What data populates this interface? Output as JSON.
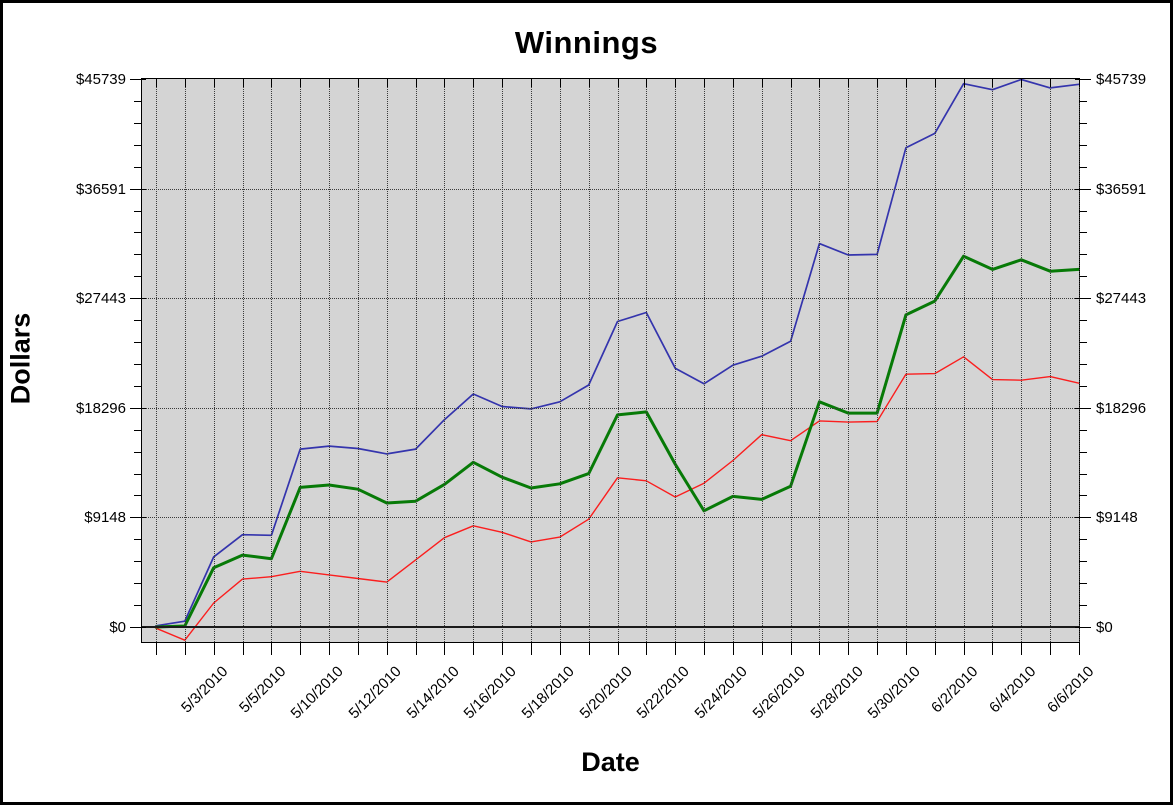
{
  "window": {
    "background": "#ffffff",
    "frame_border": "#000000"
  },
  "chart_data": {
    "type": "line",
    "title": "Winnings",
    "xlabel": "Date",
    "ylabel": "Dollars",
    "ylim": [
      0,
      45739
    ],
    "ymax_label_value": 45739,
    "y_major_ticks": [
      0,
      9148,
      18296,
      27443,
      36591,
      45739
    ],
    "y_tick_labels_top_to_bottom": [
      "$45739",
      "$36591",
      "$27443",
      "$18296",
      "$9148",
      "$0"
    ],
    "y_labels_on_both_sides": true,
    "y_minor_divisions_per_major": 5,
    "plot_bg": "#d4d4d4",
    "grid": "dotted horizontal at major dollar levels, dotted vertical at every session tick, solid line at $0",
    "legend": "none",
    "x_tick_count": 33,
    "x_labeled_tick_indices": [
      2,
      4,
      6,
      8,
      10,
      12,
      14,
      16,
      18,
      20,
      22,
      24,
      26,
      28,
      30,
      32
    ],
    "x_tick_labels": [
      "5/3/2010",
      "5/5/2010",
      "5/10/2010",
      "5/12/2010",
      "5/14/2010",
      "5/16/2010",
      "5/18/2010",
      "5/20/2010",
      "5/22/2010",
      "5/24/2010",
      "5/26/2010",
      "5/28/2010",
      "5/30/2010",
      "6/2/2010",
      "6/4/2010",
      "6/6/2010"
    ],
    "series": [
      {
        "name": "blue-line",
        "color": "#3434ad",
        "stroke_width": 1.7,
        "values": [
          100,
          480,
          5850,
          7700,
          7650,
          14850,
          15100,
          14900,
          14450,
          14850,
          17300,
          19450,
          18400,
          18200,
          18800,
          20200,
          25500,
          26250,
          21600,
          20300,
          21850,
          22600,
          23850,
          32000,
          31050,
          31100,
          40000,
          41200,
          45350,
          44850,
          45700,
          45000,
          45300
        ]
      },
      {
        "name": "green-line",
        "color": "#077a07",
        "stroke_width": 3,
        "values": [
          0,
          80,
          4950,
          6000,
          5700,
          11650,
          11850,
          11500,
          10350,
          10500,
          11900,
          13750,
          12500,
          11600,
          11950,
          12800,
          17700,
          17950,
          13600,
          9700,
          10900,
          10650,
          11750,
          18800,
          17850,
          17850,
          26050,
          27200,
          30950,
          29850,
          30650,
          29700,
          29850
        ]
      },
      {
        "name": "red-line",
        "color": "#fb1e1e",
        "stroke_width": 1.4,
        "values": [
          -100,
          -1100,
          2000,
          4000,
          4200,
          4650,
          4350,
          4050,
          3750,
          5600,
          7450,
          8450,
          7900,
          7100,
          7500,
          9000,
          12450,
          12200,
          10850,
          12000,
          13900,
          16050,
          15550,
          17200,
          17100,
          17150,
          21100,
          21150,
          22550,
          20650,
          20600,
          20900,
          20350
        ]
      }
    ]
  }
}
